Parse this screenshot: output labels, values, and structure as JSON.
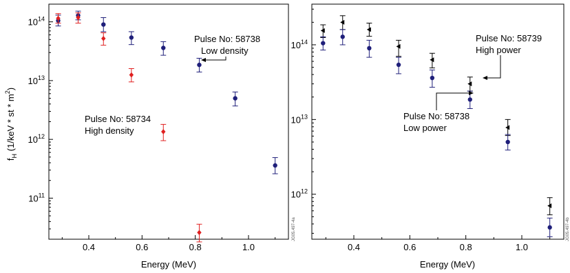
{
  "chart_data": [
    {
      "type": "scatter",
      "y_scale": "log",
      "xlim": [
        0.25,
        1.15
      ],
      "ylim": [
        20000000000.0,
        200000000000000.0
      ],
      "grid": false,
      "xlabel": "Energy (MeV)",
      "ylabel": "f_H (1/keV * st * m^2)",
      "x_ticks": [
        "0.4",
        "0.6",
        "0.8",
        "1.0"
      ],
      "x_tick_values": [
        0.4,
        0.6,
        0.8,
        1.0
      ],
      "y_ticks": [
        {
          "base": "10",
          "exp": "11",
          "value": 100000000000.0
        },
        {
          "base": "10",
          "exp": "12",
          "value": 1000000000000.0
        },
        {
          "base": "10",
          "exp": "13",
          "value": 10000000000000.0
        },
        {
          "base": "10",
          "exp": "14",
          "value": 100000000000000.0
        }
      ],
      "series": [
        {
          "name": "Pulse No: 58738 Low density",
          "color": "#1f1f7a",
          "marker": "circle",
          "x": [
            0.285,
            0.36,
            0.455,
            0.56,
            0.68,
            0.815,
            0.95,
            1.1
          ],
          "y": [
            105000000000000.0,
            128000000000000.0,
            90000000000000.0,
            54000000000000.0,
            36000000000000.0,
            18500000000000.0,
            5000000000000.0,
            360000000000.0
          ],
          "err_lo": [
            85000000000000.0,
            108000000000000.0,
            68000000000000.0,
            41000000000000.0,
            27000000000000.0,
            14000000000000.0,
            3700000000000.0,
            260000000000.0
          ],
          "err_hi": [
            130000000000000.0,
            152000000000000.0,
            118000000000000.0,
            68000000000000.0,
            46000000000000.0,
            24000000000000.0,
            6400000000000.0,
            490000000000.0
          ]
        },
        {
          "name": "Pulse No: 58734 High density",
          "color": "#e02020",
          "marker": "diamond",
          "x": [
            0.285,
            0.36,
            0.455,
            0.56,
            0.68,
            0.815
          ],
          "y": [
            115000000000000.0,
            118000000000000.0,
            52000000000000.0,
            12500000000000.0,
            1350000000000.0,
            26000000000.0
          ],
          "err_lo": [
            95000000000000.0,
            95000000000000.0,
            40000000000000.0,
            9500000000000.0,
            950000000000.0,
            18000000000.0
          ],
          "err_hi": [
            138000000000000.0,
            142000000000000.0,
            65000000000000.0,
            16000000000000.0,
            1800000000000.0,
            36000000000.0
          ]
        }
      ],
      "annotations": [
        {
          "lines": [
            "Pulse No: 58738",
            "Low density"
          ]
        },
        {
          "lines": [
            "Pulse No: 58734",
            "High density"
          ]
        }
      ],
      "id_code": "JG05.497-4a"
    },
    {
      "type": "scatter",
      "y_scale": "log",
      "xlim": [
        0.25,
        1.15
      ],
      "ylim": [
        250000000000.0,
        350000000000000.0
      ],
      "grid": false,
      "xlabel": "Energy (MeV)",
      "ylabel": "",
      "x_ticks": [
        "0.4",
        "0.6",
        "0.8",
        "1.0"
      ],
      "x_tick_values": [
        0.4,
        0.6,
        0.8,
        1.0
      ],
      "y_ticks": [
        {
          "base": "10",
          "exp": "12",
          "value": 1000000000000.0
        },
        {
          "base": "10",
          "exp": "13",
          "value": 10000000000000.0
        },
        {
          "base": "10",
          "exp": "14",
          "value": 100000000000000.0
        }
      ],
      "series": [
        {
          "name": "Pulse No: 58739 High power",
          "color": "#000000",
          "marker": "triangle-left",
          "x": [
            0.29,
            0.36,
            0.455,
            0.56,
            0.68,
            0.815,
            0.95,
            1.1
          ],
          "y": [
            155000000000000.0,
            200000000000000.0,
            160000000000000.0,
            95000000000000.0,
            63000000000000.0,
            30000000000000.0,
            7800000000000.0,
            700000000000.0
          ],
          "err_lo": [
            125000000000000.0,
            160000000000000.0,
            130000000000000.0,
            70000000000000.0,
            49000000000000.0,
            24000000000000.0,
            6100000000000.0,
            530000000000.0
          ],
          "err_hi": [
            185000000000000.0,
            245000000000000.0,
            195000000000000.0,
            115000000000000.0,
            77000000000000.0,
            37000000000000.0,
            10000000000000.0,
            900000000000.0
          ]
        },
        {
          "name": "Pulse No: 58738 Low power",
          "color": "#1f1f7a",
          "marker": "circle",
          "x": [
            0.29,
            0.36,
            0.455,
            0.56,
            0.68,
            0.815,
            0.95,
            1.1
          ],
          "y": [
            105000000000000.0,
            128000000000000.0,
            90000000000000.0,
            54000000000000.0,
            36000000000000.0,
            18500000000000.0,
            5000000000000.0,
            360000000000.0
          ],
          "err_lo": [
            85000000000000.0,
            100000000000000.0,
            68000000000000.0,
            41000000000000.0,
            27000000000000.0,
            14000000000000.0,
            3900000000000.0,
            270000000000.0
          ],
          "err_hi": [
            128000000000000.0,
            160000000000000.0,
            115000000000000.0,
            68000000000000.0,
            46000000000000.0,
            24000000000000.0,
            6300000000000.0,
            480000000000.0
          ]
        }
      ],
      "annotations": [
        {
          "lines": [
            "Pulse No: 58739",
            "High power"
          ]
        },
        {
          "lines": [
            "Pulse No: 58738",
            "Low power"
          ]
        }
      ],
      "id_code": "JG05.497-4b"
    }
  ]
}
